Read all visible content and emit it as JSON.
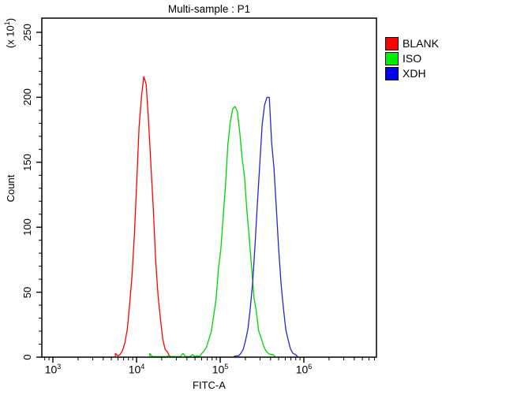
{
  "title": "Multi-sample : P1",
  "x_axis": {
    "label": "FITC-A",
    "scale": "log",
    "tick_exponents": [
      3,
      4,
      5,
      6
    ]
  },
  "y_axis": {
    "label": "Count",
    "unit_prefix": "(x 10",
    "unit_exp": "1",
    "unit_suffix": ")",
    "major_ticks": [
      0,
      50,
      100,
      150,
      200,
      250
    ],
    "minor_step": 10,
    "max": 250
  },
  "legend": [
    {
      "label": "BLANK",
      "color": "#ff0000"
    },
    {
      "label": "ISO",
      "color": "#00ee00"
    },
    {
      "label": "XDH",
      "color": "#0000ee"
    }
  ],
  "chart_data": {
    "type": "line",
    "subtype": "flow-cytometry-histogram-overlay",
    "title": "Multi-sample : P1",
    "xlabel": "FITC-A",
    "ylabel": "Count (x 10^1)",
    "x_scale": "log10",
    "xlim": [
      740,
      7400000
    ],
    "ylim": [
      0,
      250
    ],
    "grid": false,
    "legend_position": "outside-top-right",
    "series": [
      {
        "name": "BLANK",
        "color": "#ff0000",
        "peak_x": 12400,
        "peak_count": 216,
        "log10_mean": 4.094,
        "log10_sigma": 0.095,
        "baseline_range_x": [
          6500,
          23000
        ]
      },
      {
        "name": "ISO",
        "color": "#00d400",
        "peak_x": 151000,
        "peak_count": 193,
        "log10_mean": 5.179,
        "log10_sigma": 0.135,
        "baseline_range_x": [
          15000,
          330000
        ]
      },
      {
        "name": "XDH",
        "color": "#2626cc",
        "peak_x": 361000,
        "peak_count": 200,
        "log10_mean": 5.557,
        "log10_sigma": 0.108,
        "baseline_range_x": [
          200000,
          780000
        ]
      }
    ]
  }
}
